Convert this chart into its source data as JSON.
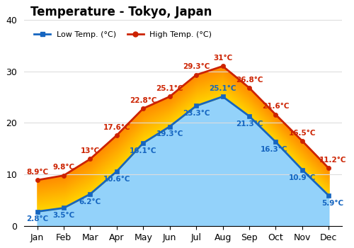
{
  "title": "Temperature - Tokyo, Japan",
  "months": [
    "Jan",
    "Feb",
    "Mar",
    "Apr",
    "May",
    "Jun",
    "Jul",
    "Aug",
    "Sep",
    "Oct",
    "Nov",
    "Dec"
  ],
  "low_temps": [
    2.8,
    3.5,
    6.2,
    10.6,
    16.1,
    19.3,
    23.3,
    25.1,
    21.3,
    16.3,
    10.9,
    5.9
  ],
  "high_temps": [
    8.9,
    9.8,
    13.0,
    17.6,
    22.8,
    25.1,
    29.3,
    31.0,
    26.8,
    21.6,
    16.5,
    11.2
  ],
  "low_labels": [
    "2.8°C",
    "3.5°C",
    "6.2°C",
    "10.6°C",
    "16.1°C",
    "19.3°C",
    "23.3°C",
    "25.1°C",
    "21.3°C",
    "16.3°C",
    "10.9°C",
    "5.9°C"
  ],
  "high_labels": [
    "8.9°C",
    "9.8°C",
    "13°C",
    "17.6°C",
    "22.8°C",
    "25.1°C",
    "29.3°C",
    "31°C",
    "26.8°C",
    "21.6°C",
    "16.5°C",
    "11.2°C"
  ],
  "low_label_offsets_y": [
    -10,
    -10,
    -10,
    -10,
    -10,
    -10,
    -10,
    6,
    -10,
    -10,
    -10,
    -10
  ],
  "low_label_offsets_x": [
    0,
    0,
    0,
    0,
    0,
    0,
    0,
    0,
    0,
    -2,
    0,
    4
  ],
  "high_label_offsets_y": [
    6,
    6,
    6,
    6,
    6,
    6,
    6,
    6,
    6,
    6,
    6,
    6
  ],
  "high_label_offsets_x": [
    0,
    0,
    0,
    0,
    0,
    0,
    0,
    0,
    0,
    0,
    0,
    4
  ],
  "low_color": "#1565c0",
  "high_color": "#cc2200",
  "fill_blue_color": "#87CEFA",
  "fill_yellow_color": "#FFD700",
  "fill_orange_color": "#FF8C00",
  "ylim": [
    0,
    40
  ],
  "yticks": [
    0,
    10,
    20,
    30,
    40
  ],
  "legend_low": "Low Temp. (°C)",
  "legend_high": "High Temp. (°C)",
  "bg_color": "#ffffff",
  "grid_color": "#dddddd",
  "title_fontsize": 12,
  "label_fontsize": 7.5,
  "tick_fontsize": 9,
  "figsize": [
    5.0,
    3.5
  ],
  "dpi": 100
}
